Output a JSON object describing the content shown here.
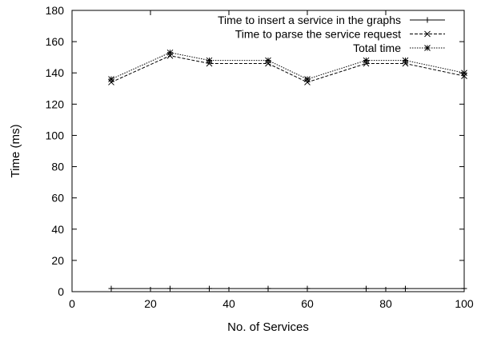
{
  "chart_data": {
    "type": "line",
    "title": "",
    "xlabel": "No. of Services",
    "ylabel": "Time (ms)",
    "xlim": [
      0,
      100
    ],
    "ylim": [
      0,
      180
    ],
    "x_ticks": [
      0,
      20,
      40,
      60,
      80,
      100
    ],
    "y_ticks": [
      0,
      20,
      40,
      60,
      80,
      100,
      120,
      140,
      160,
      180
    ],
    "grid": false,
    "legend_position": "top-right",
    "x": [
      10,
      25,
      35,
      50,
      60,
      75,
      85,
      100
    ],
    "series": [
      {
        "name": "Time to insert a service in the graphs",
        "values": [
          2,
          2,
          2,
          2,
          2,
          2,
          2,
          2
        ],
        "line_style": "solid",
        "marker": "plus",
        "color": "#000000"
      },
      {
        "name": "Time to parse the service request",
        "values": [
          134,
          151,
          146,
          146,
          134,
          146,
          146,
          138
        ],
        "line_style": "dashed",
        "marker": "cross",
        "color": "#000000"
      },
      {
        "name": "Total time",
        "values": [
          136,
          153,
          148,
          148,
          136,
          148,
          148,
          140
        ],
        "line_style": "dotted",
        "marker": "star",
        "color": "#000000"
      }
    ]
  }
}
